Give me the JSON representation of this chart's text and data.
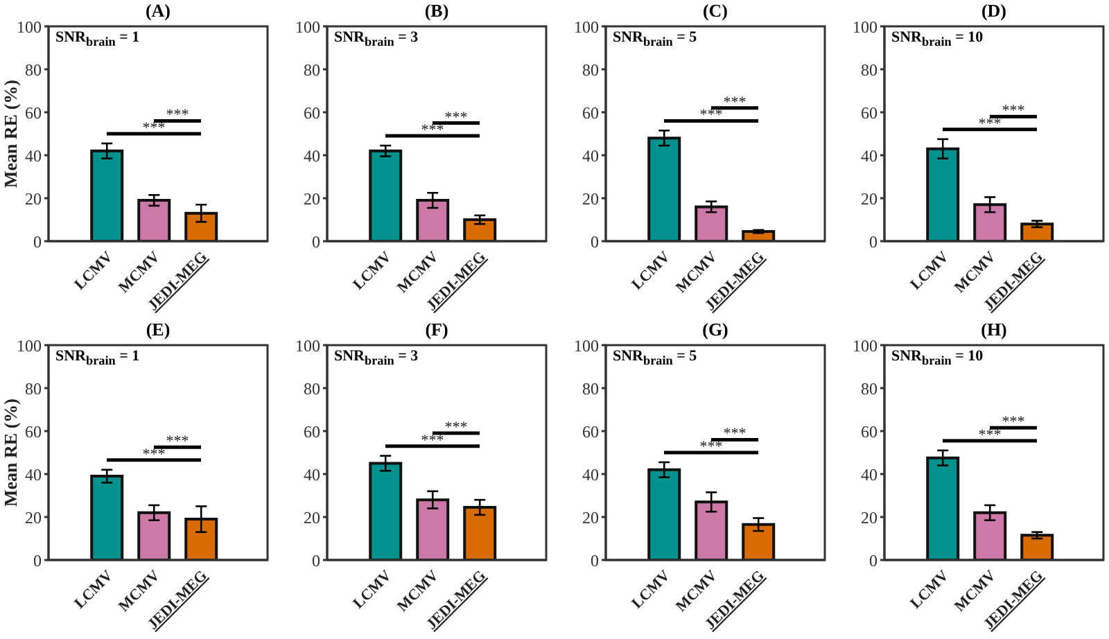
{
  "chart_data": [
    {
      "type": "bar",
      "title": "(A)",
      "subtitle": "SNR$_{brain}$ = 1",
      "ylabel": "Mean RE (%)",
      "categories": [
        "LCMV",
        "MCMV",
        "JEDI-MEG"
      ],
      "values": [
        42,
        19,
        13
      ],
      "errors": [
        3.5,
        2.5,
        4
      ],
      "colors": [
        "#00928f",
        "#cc79a7",
        "#d96c00"
      ],
      "ylim": [
        0,
        100
      ],
      "yticks": [
        0,
        20,
        40,
        60,
        80,
        100
      ],
      "annotations": [
        "***",
        "***"
      ]
    },
    {
      "type": "bar",
      "title": "(B)",
      "subtitle": "SNR$_{brain}$ = 3",
      "categories": [
        "LCMV",
        "MCMV",
        "JEDI-MEG"
      ],
      "values": [
        42,
        19,
        10
      ],
      "errors": [
        2.5,
        3.5,
        2
      ],
      "colors": [
        "#00928f",
        "#cc79a7",
        "#d96c00"
      ],
      "ylim": [
        0,
        100
      ],
      "yticks": [
        0,
        20,
        40,
        60,
        80,
        100
      ],
      "annotations": [
        "***",
        "***"
      ]
    },
    {
      "type": "bar",
      "title": "(C)",
      "subtitle": "SNR$_{brain}$ = 5",
      "categories": [
        "LCMV",
        "MCMV",
        "JEDI-MEG"
      ],
      "values": [
        48,
        16,
        4.5
      ],
      "errors": [
        3.5,
        2.5,
        0.7
      ],
      "colors": [
        "#00928f",
        "#cc79a7",
        "#d96c00"
      ],
      "ylim": [
        0,
        100
      ],
      "yticks": [
        0,
        20,
        40,
        60,
        80,
        100
      ],
      "annotations": [
        "***",
        "***"
      ]
    },
    {
      "type": "bar",
      "title": "(D)",
      "subtitle": "SNR$_{brain}$ = 10",
      "categories": [
        "LCMV",
        "MCMV",
        "JEDI-MEG"
      ],
      "values": [
        43,
        17,
        8
      ],
      "errors": [
        4.5,
        3.5,
        1.5
      ],
      "colors": [
        "#00928f",
        "#cc79a7",
        "#d96c00"
      ],
      "ylim": [
        0,
        100
      ],
      "yticks": [
        0,
        20,
        40,
        60,
        80,
        100
      ],
      "annotations": [
        "***",
        "***"
      ]
    },
    {
      "type": "bar",
      "title": "(E)",
      "subtitle": "SNR$_{brain}$ = 1",
      "ylabel": "Mean RE (%)",
      "categories": [
        "LCMV",
        "MCMV",
        "JEDI-MEG"
      ],
      "values": [
        39,
        22,
        19
      ],
      "errors": [
        3,
        3.5,
        6
      ],
      "colors": [
        "#00928f",
        "#cc79a7",
        "#d96c00"
      ],
      "ylim": [
        0,
        100
      ],
      "yticks": [
        0,
        20,
        40,
        60,
        80,
        100
      ],
      "annotations": [
        "***",
        "***"
      ]
    },
    {
      "type": "bar",
      "title": "(F)",
      "subtitle": "SNR$_{brain}$ = 3",
      "categories": [
        "LCMV",
        "MCMV",
        "JEDI-MEG"
      ],
      "values": [
        45,
        28,
        24.5
      ],
      "errors": [
        3.5,
        4,
        3.5
      ],
      "colors": [
        "#00928f",
        "#cc79a7",
        "#d96c00"
      ],
      "ylim": [
        0,
        100
      ],
      "yticks": [
        0,
        20,
        40,
        60,
        80,
        100
      ],
      "annotations": [
        "***",
        "***"
      ]
    },
    {
      "type": "bar",
      "title": "(G)",
      "subtitle": "SNR$_{brain}$ = 5",
      "categories": [
        "LCMV",
        "MCMV",
        "JEDI-MEG"
      ],
      "values": [
        42,
        27,
        16.5
      ],
      "errors": [
        3.5,
        4.5,
        3
      ],
      "colors": [
        "#00928f",
        "#cc79a7",
        "#d96c00"
      ],
      "ylim": [
        0,
        100
      ],
      "yticks": [
        0,
        20,
        40,
        60,
        80,
        100
      ],
      "annotations": [
        "***",
        "***"
      ]
    },
    {
      "type": "bar",
      "title": "(H)",
      "subtitle": "SNR$_{brain}$ = 10",
      "categories": [
        "LCMV",
        "MCMV",
        "JEDI-MEG"
      ],
      "values": [
        47.5,
        22,
        11.5
      ],
      "errors": [
        3.5,
        3.5,
        1.5
      ],
      "colors": [
        "#00928f",
        "#cc79a7",
        "#d96c00"
      ],
      "ylim": [
        0,
        100
      ],
      "yticks": [
        0,
        20,
        40,
        60,
        80,
        100
      ],
      "annotations": [
        "***",
        "***"
      ]
    }
  ]
}
